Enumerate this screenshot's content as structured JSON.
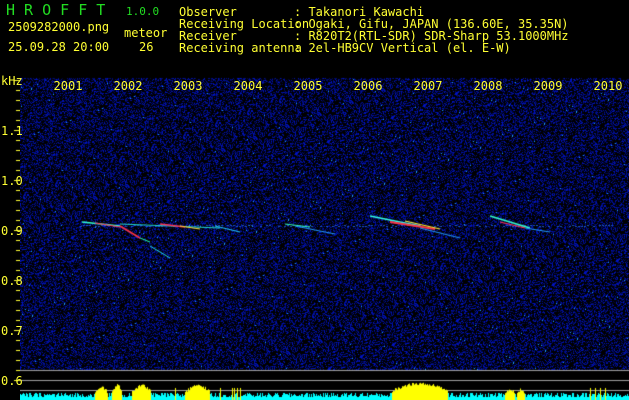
{
  "app": {
    "name": "H R O F F T",
    "version": "1.0.0"
  },
  "file": {
    "name": "2509282000.png",
    "datetime": "25.09.28 20:00"
  },
  "meteor": {
    "label": "meteor",
    "count": "26"
  },
  "info": [
    {
      "label": "Observer",
      "value": ": Takanori Kawachi"
    },
    {
      "label": "Receiving Location",
      "value": ": Ogaki, Gifu, JAPAN (136.60E, 35.35N)"
    },
    {
      "label": "Receiver",
      "value": ": R820T2(RTL-SDR) SDR-Sharp 53.1000MHz"
    },
    {
      "label": "Receiving antenna",
      "value": ": 2el-HB9CV Vertical (el. E-W)"
    }
  ],
  "axis": {
    "y_unit": "kHz",
    "y_ticks": [
      "1.1",
      "1.0",
      "0.9",
      "0.8",
      "0.7",
      "0.6"
    ],
    "x_ticks": [
      "2001",
      "2002",
      "2003",
      "2004",
      "2005",
      "2006",
      "2007",
      "2008",
      "2009",
      "2010"
    ]
  },
  "colors": {
    "text": "#ffff33",
    "title": "#22dd22",
    "background": "#000000",
    "noise": "#0a1a9a",
    "baseline": "#00ffff",
    "meteor_level": "#ffff00",
    "guide_line": "#a0a0a0"
  }
}
